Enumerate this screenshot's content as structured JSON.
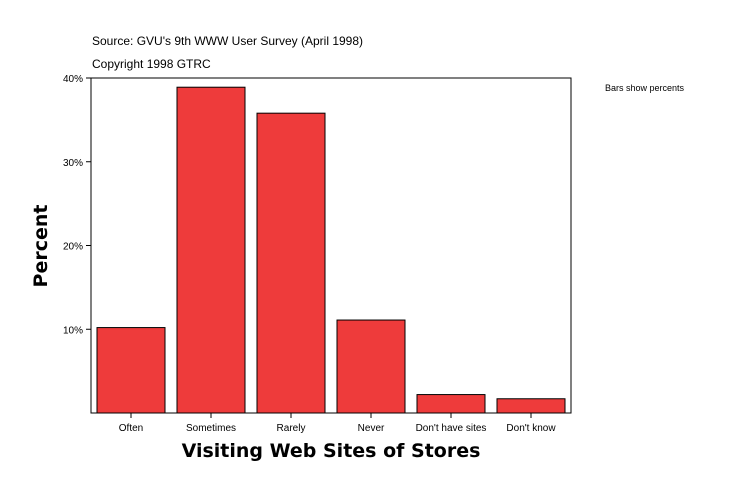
{
  "header": {
    "source": "Source: GVU's 9th WWW User Survey (April 1998)",
    "copyright": "Copyright 1998 GTRC",
    "note": "Bars show percents"
  },
  "chart_data": {
    "type": "bar",
    "categories": [
      "Often",
      "Sometimes",
      "Rarely",
      "Never",
      "Don't have sites",
      "Don't know"
    ],
    "values": [
      10.2,
      38.9,
      35.8,
      11.1,
      2.2,
      1.7
    ],
    "xlabel": "Visiting Web Sites of Stores",
    "ylabel": "Percent",
    "ylim": [
      0,
      40
    ],
    "yticks": [
      10,
      20,
      30,
      40
    ],
    "ytick_labels": [
      "10%",
      "20%",
      "30%",
      "40%"
    ],
    "bar_color": "#ee3b3b",
    "grid": false,
    "legend": "none"
  }
}
